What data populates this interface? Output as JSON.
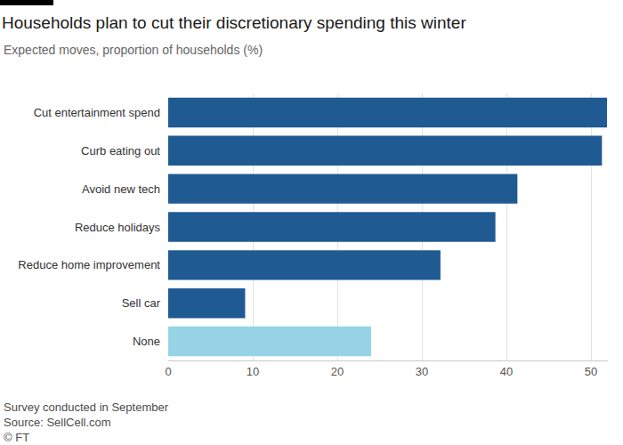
{
  "chart_data": {
    "type": "bar",
    "orientation": "horizontal",
    "title": "Households plan to cut their discretionary spending this winter",
    "subtitle": "Expected moves, proportion of households (%)",
    "categories": [
      "Cut entertainment spend",
      "Curb eating out",
      "Avoid new tech",
      "Reduce holidays",
      "Reduce home improvement",
      "Sell car",
      "None"
    ],
    "values": [
      51.9,
      51.3,
      41.3,
      38.7,
      32.2,
      9.1,
      24.0
    ],
    "colors": [
      "#1f5a93",
      "#1f5a93",
      "#1f5a93",
      "#1f5a93",
      "#1f5a93",
      "#1f5a93",
      "#96d3e6"
    ],
    "xlim": [
      0,
      52
    ],
    "xticks": [
      0,
      10,
      20,
      30,
      40,
      50
    ],
    "grid": true,
    "annotations": [
      "Survey conducted in September",
      "Source: SellCell.com",
      "© FT"
    ]
  }
}
